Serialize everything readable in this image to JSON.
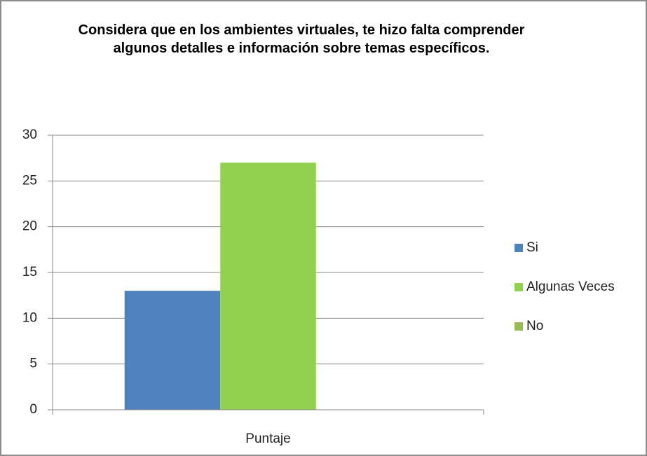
{
  "chart_data": {
    "type": "bar",
    "title": "Considera que en los ambientes virtuales, te hizo falta comprender algunos detalles e información sobre temas específicos.",
    "categories": [
      "Puntaje"
    ],
    "series": [
      {
        "name": "Si",
        "color": "#4f81bd",
        "values": [
          13
        ]
      },
      {
        "name": "Algunas Veces",
        "color": "#92d050",
        "values": [
          27
        ]
      },
      {
        "name": "No",
        "color": "#9bbb59",
        "values": [
          0
        ]
      }
    ],
    "ylim": [
      0,
      30
    ],
    "yticks": [
      0,
      5,
      10,
      15,
      20,
      25,
      30
    ],
    "grid": true,
    "legend": "right"
  }
}
